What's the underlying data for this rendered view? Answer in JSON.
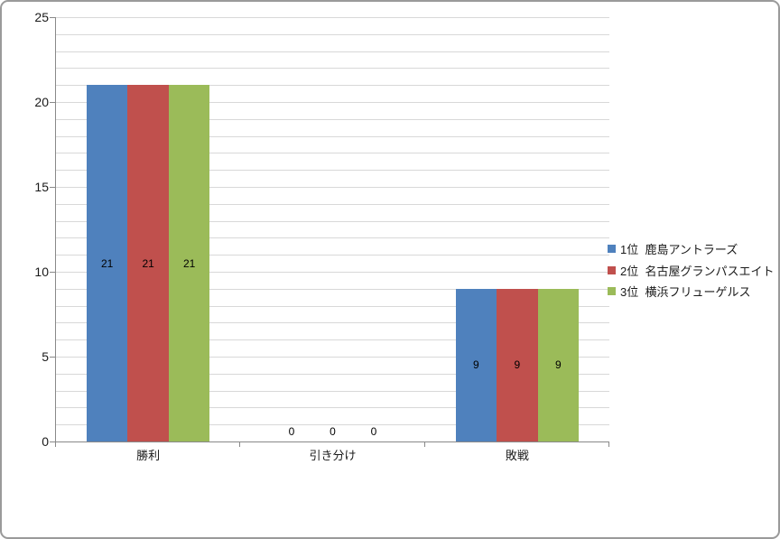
{
  "chart_data": {
    "type": "bar",
    "title": "",
    "categories": [
      "勝利",
      "引き分け",
      "敗戦"
    ],
    "series": [
      {
        "name": "1位  鹿島アントラーズ",
        "color": "#4F81BD",
        "values": [
          21,
          0,
          9
        ]
      },
      {
        "name": "2位  名古屋グランパスエイト",
        "color": "#C0504D",
        "values": [
          21,
          0,
          9
        ]
      },
      {
        "name": "3位  横浜フリューゲルス",
        "color": "#9BBB59",
        "values": [
          21,
          0,
          9
        ]
      }
    ],
    "xlabel": "",
    "ylabel": "",
    "ylim": [
      0,
      25
    ],
    "y_major_ticks": [
      0,
      5,
      10,
      15,
      20,
      25
    ],
    "y_minor_unit": 1,
    "gridlines": "horizontal-every-minor-unit",
    "data_labels": "center",
    "legend_position": "right"
  },
  "colors": {
    "background": "#ffffff",
    "gridline": "#d8d8d8",
    "axis": "#898989",
    "border": "#9a9a9a",
    "text": "#1a1a1a"
  }
}
